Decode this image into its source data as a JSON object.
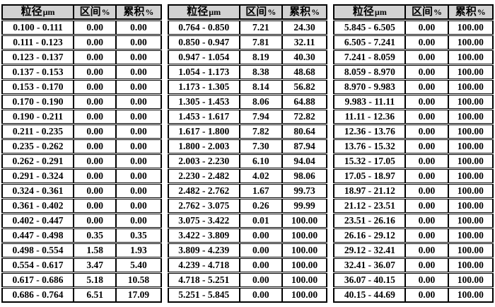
{
  "header": {
    "size_label": "粒径",
    "size_unit": "µm",
    "interval_label": "区间",
    "cumulative_label": "累积",
    "percent_sign": "%"
  },
  "colors": {
    "header_bg": "#d2d2d2",
    "border": "#000000",
    "background": "#ffffff",
    "text": "#000000"
  },
  "tables": [
    {
      "rows": [
        [
          "0.100 - 0.111",
          "0.00",
          "0.00"
        ],
        [
          "0.111 - 0.123",
          "0.00",
          "0.00"
        ],
        [
          "0.123 - 0.137",
          "0.00",
          "0.00"
        ],
        [
          "0.137 - 0.153",
          "0.00",
          "0.00"
        ],
        [
          "0.153 - 0.170",
          "0.00",
          "0.00"
        ],
        [
          "0.170 - 0.190",
          "0.00",
          "0.00"
        ],
        [
          "0.190 - 0.211",
          "0.00",
          "0.00"
        ],
        [
          "0.211 - 0.235",
          "0.00",
          "0.00"
        ],
        [
          "0.235 - 0.262",
          "0.00",
          "0.00"
        ],
        [
          "0.262 - 0.291",
          "0.00",
          "0.00"
        ],
        [
          "0.291 - 0.324",
          "0.00",
          "0.00"
        ],
        [
          "0.324 - 0.361",
          "0.00",
          "0.00"
        ],
        [
          "0.361 - 0.402",
          "0.00",
          "0.00"
        ],
        [
          "0.402 - 0.447",
          "0.00",
          "0.00"
        ],
        [
          "0.447 - 0.498",
          "0.35",
          "0.35"
        ],
        [
          "0.498 - 0.554",
          "1.58",
          "1.93"
        ],
        [
          "0.554 - 0.617",
          "3.47",
          "5.40"
        ],
        [
          "0.617 - 0.686",
          "5.18",
          "10.58"
        ],
        [
          "0.686 - 0.764",
          "6.51",
          "17.09"
        ]
      ]
    },
    {
      "rows": [
        [
          "0.764 - 0.850",
          "7.21",
          "24.30"
        ],
        [
          "0.850 - 0.947",
          "7.81",
          "32.11"
        ],
        [
          "0.947 - 1.054",
          "8.19",
          "40.30"
        ],
        [
          "1.054 - 1.173",
          "8.38",
          "48.68"
        ],
        [
          "1.173 - 1.305",
          "8.14",
          "56.82"
        ],
        [
          "1.305 - 1.453",
          "8.06",
          "64.88"
        ],
        [
          "1.453 - 1.617",
          "7.94",
          "72.82"
        ],
        [
          "1.617 - 1.800",
          "7.82",
          "80.64"
        ],
        [
          "1.800 - 2.003",
          "7.30",
          "87.94"
        ],
        [
          "2.003 - 2.230",
          "6.10",
          "94.04"
        ],
        [
          "2.230 - 2.482",
          "4.02",
          "98.06"
        ],
        [
          "2.482 - 2.762",
          "1.67",
          "99.73"
        ],
        [
          "2.762 - 3.075",
          "0.26",
          "99.99"
        ],
        [
          "3.075 - 3.422",
          "0.01",
          "100.00"
        ],
        [
          "3.422 - 3.809",
          "0.00",
          "100.00"
        ],
        [
          "3.809 - 4.239",
          "0.00",
          "100.00"
        ],
        [
          "4.239 - 4.718",
          "0.00",
          "100.00"
        ],
        [
          "4.718 - 5.251",
          "0.00",
          "100.00"
        ],
        [
          "5.251 - 5.845",
          "0.00",
          "100.00"
        ]
      ]
    },
    {
      "rows": [
        [
          "5.845 - 6.505",
          "0.00",
          "100.00"
        ],
        [
          "6.505 - 7.241",
          "0.00",
          "100.00"
        ],
        [
          "7.241 - 8.059",
          "0.00",
          "100.00"
        ],
        [
          "8.059 - 8.970",
          "0.00",
          "100.00"
        ],
        [
          "8.970 - 9.983",
          "0.00",
          "100.00"
        ],
        [
          "9.983 - 11.11",
          "0.00",
          "100.00"
        ],
        [
          "11.11 - 12.36",
          "0.00",
          "100.00"
        ],
        [
          "12.36 - 13.76",
          "0.00",
          "100.00"
        ],
        [
          "13.76 - 15.32",
          "0.00",
          "100.00"
        ],
        [
          "15.32 - 17.05",
          "0.00",
          "100.00"
        ],
        [
          "17.05 - 18.97",
          "0.00",
          "100.00"
        ],
        [
          "18.97 - 21.12",
          "0.00",
          "100.00"
        ],
        [
          "21.12 - 23.51",
          "0.00",
          "100.00"
        ],
        [
          "23.51 - 26.16",
          "0.00",
          "100.00"
        ],
        [
          "26.16 - 29.12",
          "0.00",
          "100.00"
        ],
        [
          "29.12 - 32.41",
          "0.00",
          "100.00"
        ],
        [
          "32.41 - 36.07",
          "0.00",
          "100.00"
        ],
        [
          "36.07 - 40.15",
          "0.00",
          "100.00"
        ],
        [
          "40.15 - 44.69",
          "0.00",
          "100.00"
        ]
      ]
    }
  ]
}
